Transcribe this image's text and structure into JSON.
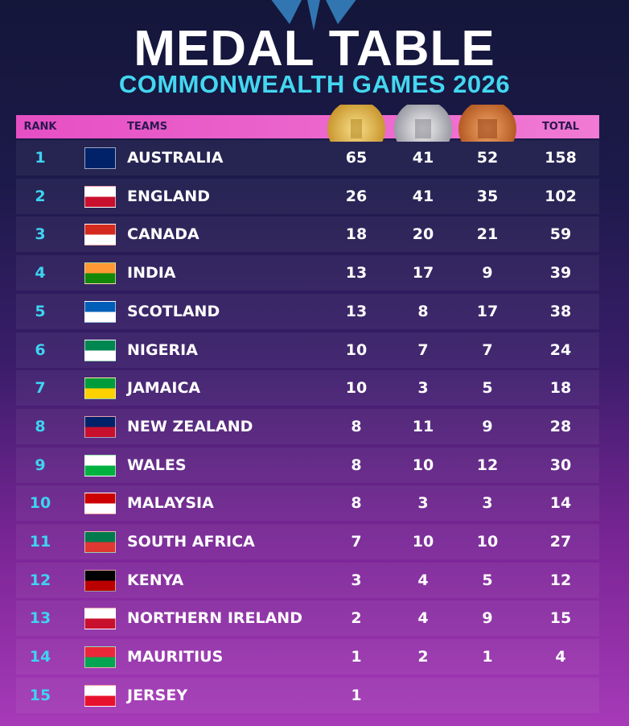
{
  "header": {
    "title": "MEDAL TABLE",
    "subtitle": "COMMONWEALTH GAMES 2026"
  },
  "table": {
    "columns": {
      "rank": "RANK",
      "team": "TEAMS",
      "total": "TOTAL"
    },
    "rows": [
      {
        "rank": 1,
        "team": "AUSTRALIA",
        "gold": 65,
        "silver": 41,
        "bronze": 52,
        "total": 158
      },
      {
        "rank": 2,
        "team": "ENGLAND",
        "gold": 26,
        "silver": 41,
        "bronze": 35,
        "total": 102
      },
      {
        "rank": 3,
        "team": "CANADA",
        "gold": 18,
        "silver": 20,
        "bronze": 21,
        "total": 59
      },
      {
        "rank": 4,
        "team": "INDIA",
        "gold": 13,
        "silver": 17,
        "bronze": 9,
        "total": 39
      },
      {
        "rank": 5,
        "team": "SCOTLAND",
        "gold": 13,
        "silver": 8,
        "bronze": 17,
        "total": 38
      },
      {
        "rank": 6,
        "team": "NIGERIA",
        "gold": 10,
        "silver": 7,
        "bronze": 7,
        "total": 24
      },
      {
        "rank": 7,
        "team": "JAMAICA",
        "gold": 10,
        "silver": 3,
        "bronze": 5,
        "total": 18
      },
      {
        "rank": 8,
        "team": "NEW ZEALAND",
        "gold": 8,
        "silver": 11,
        "bronze": 9,
        "total": 28
      },
      {
        "rank": 9,
        "team": "WALES",
        "gold": 8,
        "silver": 10,
        "bronze": 12,
        "total": 30
      },
      {
        "rank": 10,
        "team": "MALAYSIA",
        "gold": 8,
        "silver": 3,
        "bronze": 3,
        "total": 14
      },
      {
        "rank": 11,
        "team": "SOUTH AFRICA",
        "gold": 7,
        "silver": 10,
        "bronze": 10,
        "total": 27
      },
      {
        "rank": 12,
        "team": "KENYA",
        "gold": 3,
        "silver": 4,
        "bronze": 5,
        "total": 12
      },
      {
        "rank": 13,
        "team": "NORTHERN IRELAND",
        "gold": 2,
        "silver": 4,
        "bronze": 9,
        "total": 15
      },
      {
        "rank": 14,
        "team": "MAURITIUS",
        "gold": 1,
        "silver": 2,
        "bronze": 1,
        "total": 4
      },
      {
        "rank": 15,
        "team": "JERSEY",
        "gold": 1
      }
    ]
  }
}
